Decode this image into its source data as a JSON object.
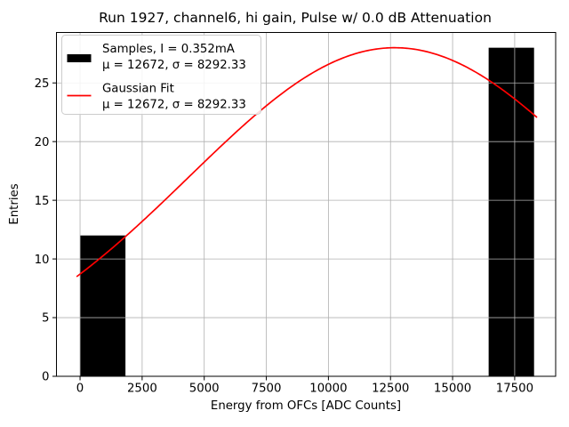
{
  "chart_data": {
    "type": "histogram",
    "title": "Run 1927, channel6, hi gain, Pulse w/ 0.0 dB Attenuation",
    "xlabel": "Energy from OFCs [ADC Counts]",
    "ylabel": "Entries",
    "xlim": [
      -950,
      19150
    ],
    "ylim": [
      0,
      29.3
    ],
    "xticks": [
      0,
      2500,
      5000,
      7500,
      10000,
      12500,
      15000,
      17500
    ],
    "yticks": [
      0,
      5,
      10,
      15,
      20,
      25
    ],
    "grid": true,
    "grid_color": "#b0b0b0",
    "spine_color": "#000000",
    "bar_color": "#000000",
    "bars": [
      {
        "x0": 0,
        "x1": 1828,
        "count": 12
      },
      {
        "x0": 16452,
        "x1": 18280,
        "count": 28
      }
    ],
    "fit_curve": {
      "type": "gaussian",
      "color": "#ff0000",
      "amplitude": 28.0,
      "mu": 12672,
      "sigma": 8292.33,
      "x_range": [
        -120,
        18380
      ]
    },
    "legend": {
      "position": "upper-left",
      "entries": [
        {
          "swatch": "bar",
          "color": "#000000",
          "line1": "Samples, I = 0.352mA",
          "line2": "μ = 12672, σ = 8292.33"
        },
        {
          "swatch": "line",
          "color": "#ff0000",
          "line1": "Gaussian Fit",
          "line2": "μ = 12672, σ = 8292.33"
        }
      ]
    }
  }
}
